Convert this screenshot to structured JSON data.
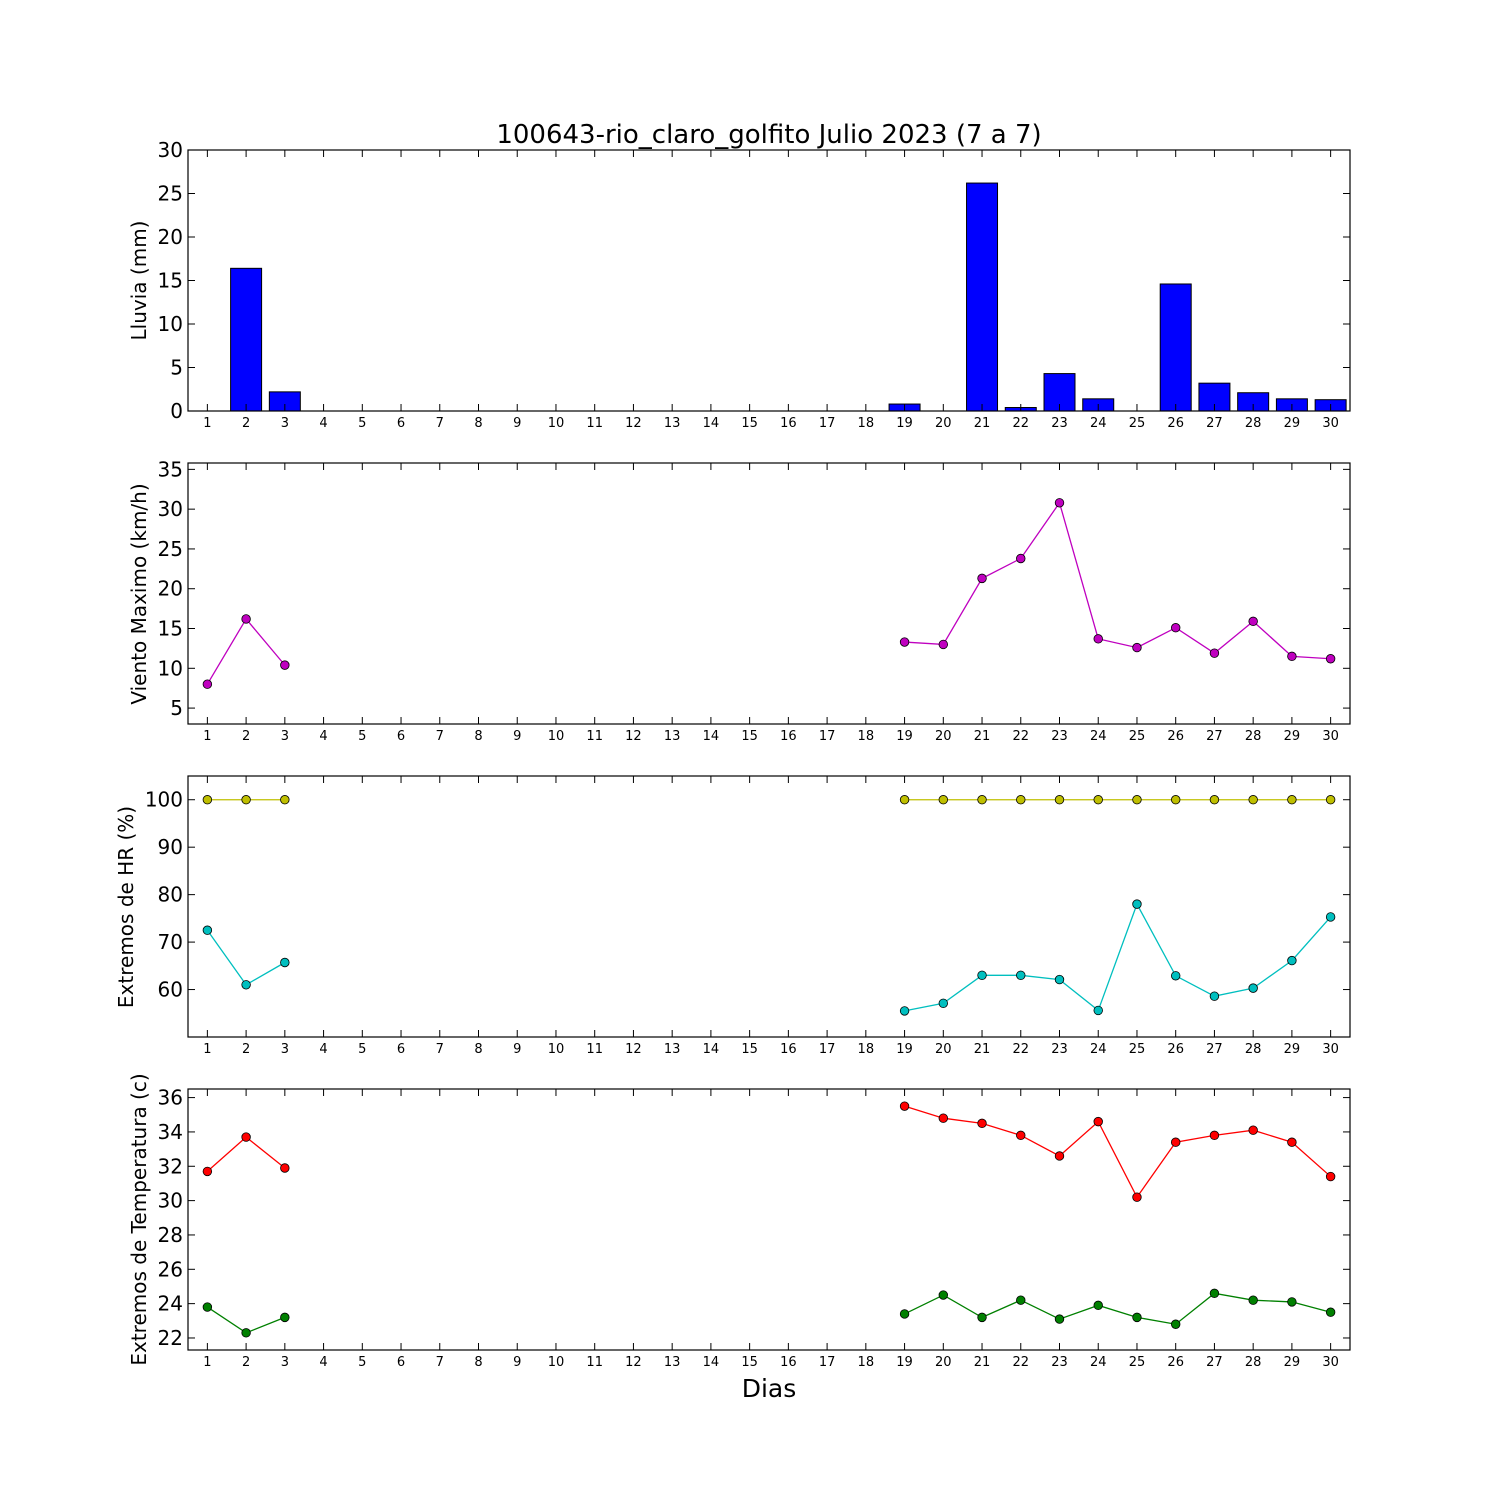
{
  "chart_data": [
    {
      "type": "bar",
      "title": "100643-rio_claro_golfito Julio 2023  (7 a 7)",
      "xlabel": "",
      "ylabel": "Lluvia (mm)",
      "xlim": [
        0.5,
        30.5
      ],
      "ylim": [
        0,
        30
      ],
      "yticks": [
        0,
        5,
        10,
        15,
        20,
        25,
        30
      ],
      "x": [
        1,
        2,
        3,
        4,
        5,
        6,
        7,
        8,
        9,
        10,
        11,
        12,
        13,
        14,
        15,
        16,
        17,
        18,
        19,
        20,
        21,
        22,
        23,
        24,
        25,
        26,
        27,
        28,
        29,
        30
      ],
      "grid": false,
      "series": [
        {
          "color": "#0000ff",
          "values": [
            0,
            16.4,
            2.2,
            null,
            null,
            null,
            null,
            null,
            null,
            null,
            null,
            null,
            null,
            null,
            null,
            null,
            null,
            null,
            0.8,
            0,
            26.2,
            0.4,
            4.3,
            1.4,
            0,
            14.6,
            3.2,
            2.1,
            1.4,
            1.3
          ]
        }
      ]
    },
    {
      "type": "line",
      "xlabel": "",
      "ylabel": "Viento Maximo (km/h)",
      "xlim": [
        0.5,
        30.5
      ],
      "ylim": [
        3,
        35.8
      ],
      "yticks": [
        5,
        10,
        15,
        20,
        25,
        30,
        35
      ],
      "x": [
        1,
        2,
        3,
        4,
        5,
        6,
        7,
        8,
        9,
        10,
        11,
        12,
        13,
        14,
        15,
        16,
        17,
        18,
        19,
        20,
        21,
        22,
        23,
        24,
        25,
        26,
        27,
        28,
        29,
        30
      ],
      "grid": false,
      "series": [
        {
          "color": "#bf00bf",
          "values": [
            8.0,
            16.2,
            10.4,
            null,
            null,
            null,
            null,
            null,
            null,
            null,
            null,
            null,
            null,
            null,
            null,
            null,
            null,
            null,
            13.3,
            13.0,
            21.3,
            23.8,
            30.8,
            13.7,
            12.6,
            15.1,
            11.9,
            15.9,
            11.5,
            11.2
          ]
        }
      ]
    },
    {
      "type": "line",
      "xlabel": "",
      "ylabel": "Extremos de HR (%)",
      "xlim": [
        0.5,
        30.5
      ],
      "ylim": [
        50,
        105
      ],
      "yticks": [
        60,
        70,
        80,
        90,
        100
      ],
      "x": [
        1,
        2,
        3,
        4,
        5,
        6,
        7,
        8,
        9,
        10,
        11,
        12,
        13,
        14,
        15,
        16,
        17,
        18,
        19,
        20,
        21,
        22,
        23,
        24,
        25,
        26,
        27,
        28,
        29,
        30
      ],
      "grid": false,
      "series": [
        {
          "color": "#bfbf00",
          "values": [
            100,
            100,
            100,
            null,
            null,
            null,
            null,
            null,
            null,
            null,
            null,
            null,
            null,
            null,
            null,
            null,
            null,
            null,
            100,
            100,
            100,
            100,
            100,
            100,
            100,
            100,
            100,
            100,
            100,
            100
          ]
        },
        {
          "color": "#00bfbf",
          "values": [
            72.5,
            61.0,
            65.7,
            null,
            null,
            null,
            null,
            null,
            null,
            null,
            null,
            null,
            null,
            null,
            null,
            null,
            null,
            null,
            55.5,
            57.1,
            63.0,
            63.0,
            62.1,
            55.6,
            78.0,
            62.9,
            58.6,
            60.3,
            66.1,
            75.3
          ]
        }
      ]
    },
    {
      "type": "line",
      "xlabel": "Dias",
      "ylabel": "Extremos de Temperatura (c)",
      "xlim": [
        0.5,
        30.5
      ],
      "ylim": [
        21.3,
        36.5
      ],
      "yticks": [
        22,
        24,
        26,
        28,
        30,
        32,
        34,
        36
      ],
      "x": [
        1,
        2,
        3,
        4,
        5,
        6,
        7,
        8,
        9,
        10,
        11,
        12,
        13,
        14,
        15,
        16,
        17,
        18,
        19,
        20,
        21,
        22,
        23,
        24,
        25,
        26,
        27,
        28,
        29,
        30
      ],
      "grid": false,
      "series": [
        {
          "color": "#ff0000",
          "values": [
            31.7,
            33.7,
            31.9,
            null,
            null,
            null,
            null,
            null,
            null,
            null,
            null,
            null,
            null,
            null,
            null,
            null,
            null,
            null,
            35.5,
            34.8,
            34.5,
            33.8,
            32.6,
            34.6,
            30.2,
            33.4,
            33.8,
            34.1,
            33.4,
            31.4
          ]
        },
        {
          "color": "#008000",
          "values": [
            23.8,
            22.3,
            23.2,
            null,
            null,
            null,
            null,
            null,
            null,
            null,
            null,
            null,
            null,
            null,
            null,
            null,
            null,
            null,
            23.4,
            24.5,
            23.2,
            24.2,
            23.1,
            23.9,
            23.2,
            22.8,
            24.6,
            24.2,
            24.1,
            23.5
          ]
        }
      ]
    }
  ]
}
